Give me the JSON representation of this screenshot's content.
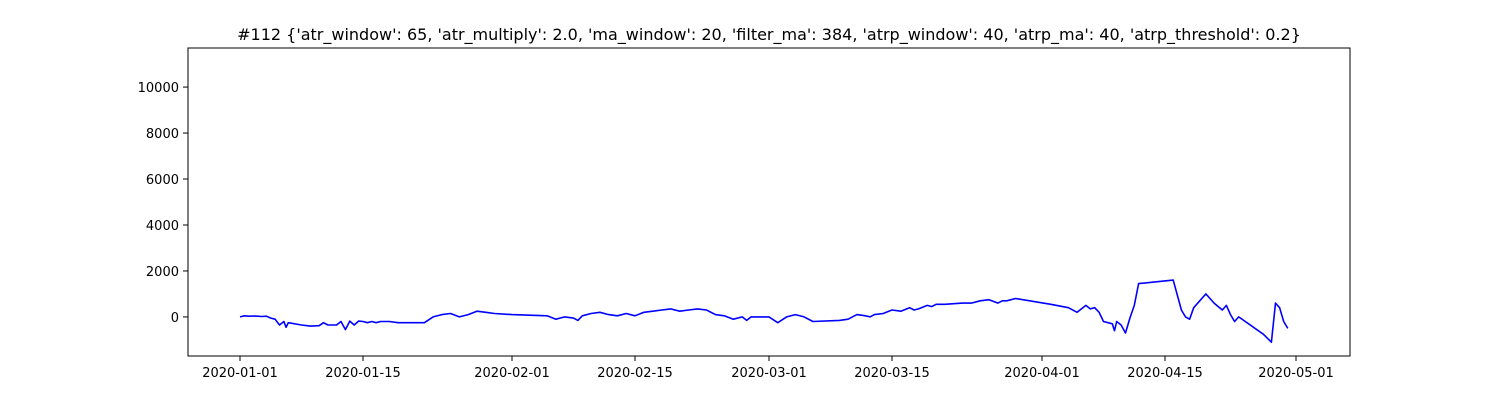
{
  "chart_data": {
    "type": "line",
    "title": "#112 {'atr_window': 65, 'atr_multiply': 2.0, 'ma_window': 20, 'filter_ma': 384, 'atrp_window': 40, 'atrp_ma': 40, 'atrp_threshold': 0.2}",
    "xlabel": "",
    "ylabel": "",
    "x_type": "date",
    "xlim": [
      "2019-12-25",
      "2020-05-02"
    ],
    "ylim": [
      -1700,
      11700
    ],
    "x_ticks": [
      "2020-01-01",
      "2020-01-15",
      "2020-02-01",
      "2020-02-15",
      "2020-03-01",
      "2020-03-15",
      "2020-04-01",
      "2020-04-15",
      "2020-05-01"
    ],
    "y_ticks": [
      0,
      2000,
      4000,
      6000,
      8000,
      10000
    ],
    "grid": false,
    "series": [
      {
        "color": "#0000ff",
        "points": [
          [
            "2020-01-01",
            0
          ],
          [
            "2020-01-01 12:00",
            50
          ],
          [
            "2020-01-02",
            30
          ],
          [
            "2020-01-02 12:00",
            40
          ],
          [
            "2020-01-03",
            30
          ],
          [
            "2020-01-03 12:00",
            20
          ],
          [
            "2020-01-04",
            30
          ],
          [
            "2020-01-04 12:00",
            -50
          ],
          [
            "2020-01-05",
            -100
          ],
          [
            "2020-01-05 12:00",
            -350
          ],
          [
            "2020-01-06",
            -200
          ],
          [
            "2020-01-06 06:00",
            -450
          ],
          [
            "2020-01-06 12:00",
            -250
          ],
          [
            "2020-01-08",
            -350
          ],
          [
            "2020-01-09",
            -400
          ],
          [
            "2020-01-10",
            -380
          ],
          [
            "2020-01-10 12:00",
            -250
          ],
          [
            "2020-01-11",
            -350
          ],
          [
            "2020-01-12",
            -350
          ],
          [
            "2020-01-12 12:00",
            -200
          ],
          [
            "2020-01-13",
            -550
          ],
          [
            "2020-01-13 12:00",
            -180
          ],
          [
            "2020-01-14",
            -350
          ],
          [
            "2020-01-14 12:00",
            -180
          ],
          [
            "2020-01-15",
            -200
          ],
          [
            "2020-01-15 12:00",
            -250
          ],
          [
            "2020-01-16",
            -200
          ],
          [
            "2020-01-16 12:00",
            -250
          ],
          [
            "2020-01-17",
            -200
          ],
          [
            "2020-01-18",
            -200
          ],
          [
            "2020-01-19",
            -250
          ],
          [
            "2020-01-22",
            -250
          ],
          [
            "2020-01-23",
            0
          ],
          [
            "2020-01-24",
            100
          ],
          [
            "2020-01-25",
            150
          ],
          [
            "2020-01-26",
            0
          ],
          [
            "2020-01-27",
            100
          ],
          [
            "2020-01-28",
            250
          ],
          [
            "2020-01-29",
            200
          ],
          [
            "2020-01-30",
            150
          ],
          [
            "2020-02-01",
            100
          ],
          [
            "2020-02-05",
            50
          ],
          [
            "2020-02-06",
            -100
          ],
          [
            "2020-02-07",
            0
          ],
          [
            "2020-02-08",
            -50
          ],
          [
            "2020-02-08 12:00",
            -150
          ],
          [
            "2020-02-09",
            50
          ],
          [
            "2020-02-10",
            150
          ],
          [
            "2020-02-11",
            200
          ],
          [
            "2020-02-12",
            100
          ],
          [
            "2020-02-13",
            50
          ],
          [
            "2020-02-14",
            150
          ],
          [
            "2020-02-15",
            50
          ],
          [
            "2020-02-16",
            200
          ],
          [
            "2020-02-17",
            250
          ],
          [
            "2020-02-18",
            300
          ],
          [
            "2020-02-19",
            350
          ],
          [
            "2020-02-20",
            250
          ],
          [
            "2020-02-21",
            300
          ],
          [
            "2020-02-22",
            350
          ],
          [
            "2020-02-23",
            300
          ],
          [
            "2020-02-24",
            100
          ],
          [
            "2020-02-25",
            50
          ],
          [
            "2020-02-26",
            -100
          ],
          [
            "2020-02-27",
            0
          ],
          [
            "2020-02-27 12:00",
            -150
          ],
          [
            "2020-02-28",
            0
          ],
          [
            "2020-03-01",
            0
          ],
          [
            "2020-03-02",
            -250
          ],
          [
            "2020-03-03",
            0
          ],
          [
            "2020-03-04",
            100
          ],
          [
            "2020-03-05",
            0
          ],
          [
            "2020-03-06",
            -200
          ],
          [
            "2020-03-09",
            -150
          ],
          [
            "2020-03-10",
            -100
          ],
          [
            "2020-03-11",
            100
          ],
          [
            "2020-03-12",
            50
          ],
          [
            "2020-03-12 12:00",
            0
          ],
          [
            "2020-03-13",
            100
          ],
          [
            "2020-03-14",
            150
          ],
          [
            "2020-03-15",
            300
          ],
          [
            "2020-03-16",
            250
          ],
          [
            "2020-03-17",
            400
          ],
          [
            "2020-03-17 12:00",
            300
          ],
          [
            "2020-03-18",
            350
          ],
          [
            "2020-03-19",
            500
          ],
          [
            "2020-03-19 12:00",
            450
          ],
          [
            "2020-03-20",
            550
          ],
          [
            "2020-03-21",
            550
          ],
          [
            "2020-03-23",
            600
          ],
          [
            "2020-03-24",
            600
          ],
          [
            "2020-03-25",
            700
          ],
          [
            "2020-03-26",
            750
          ],
          [
            "2020-03-27",
            600
          ],
          [
            "2020-03-27 12:00",
            700
          ],
          [
            "2020-03-28",
            700
          ],
          [
            "2020-03-29",
            800
          ],
          [
            "2020-04-02",
            550
          ],
          [
            "2020-04-04",
            400
          ],
          [
            "2020-04-05",
            200
          ],
          [
            "2020-04-06",
            500
          ],
          [
            "2020-04-06 12:00",
            350
          ],
          [
            "2020-04-07",
            400
          ],
          [
            "2020-04-07 12:00",
            200
          ],
          [
            "2020-04-08",
            -200
          ],
          [
            "2020-04-09",
            -300
          ],
          [
            "2020-04-09 06:00",
            -600
          ],
          [
            "2020-04-09 12:00",
            -200
          ],
          [
            "2020-04-10",
            -350
          ],
          [
            "2020-04-10 12:00",
            -700
          ],
          [
            "2020-04-11",
            -50
          ],
          [
            "2020-04-11 12:00",
            500
          ],
          [
            "2020-04-12",
            1450
          ],
          [
            "2020-04-16",
            1600
          ],
          [
            "2020-04-17",
            300
          ],
          [
            "2020-04-17 12:00",
            0
          ],
          [
            "2020-04-18",
            -100
          ],
          [
            "2020-04-18 12:00",
            400
          ],
          [
            "2020-04-20",
            1000
          ],
          [
            "2020-04-21",
            600
          ],
          [
            "2020-04-22",
            300
          ],
          [
            "2020-04-22 12:00",
            500
          ],
          [
            "2020-04-23",
            100
          ],
          [
            "2020-04-23 12:00",
            -200
          ],
          [
            "2020-04-24",
            0
          ],
          [
            "2020-04-27",
            -750
          ],
          [
            "2020-04-28",
            -1100
          ],
          [
            "2020-04-28 12:00",
            600
          ],
          [
            "2020-04-29",
            400
          ],
          [
            "2020-04-29 12:00",
            -200
          ],
          [
            "2020-04-30",
            -500
          ]
        ]
      }
    ]
  }
}
